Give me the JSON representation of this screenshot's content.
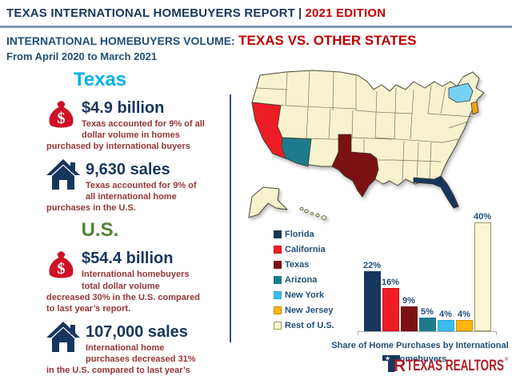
{
  "header": {
    "title": "TEXAS INTERNATIONAL HOMEBUYERS REPORT",
    "separator": "|",
    "edition": "2021 EDITION"
  },
  "subtitle": {
    "prefix": "INTERNATIONAL HOMEBUYERS VOLUME:",
    "highlight": "TEXAS VS. OTHER STATES",
    "date_range": "From April 2020 to March 2021"
  },
  "stats": {
    "texas": {
      "heading": "Texas",
      "items": [
        {
          "icon": "money-bag-icon",
          "headline": "$4.9 billion",
          "description": "Texas accounted for 9% of all dollar volume in homes purchased by international buyers"
        },
        {
          "icon": "house-icon",
          "headline": "9,630 sales",
          "description": "Texas accounted for 9% of all international home purchases in the U.S."
        }
      ]
    },
    "us": {
      "heading": "U.S.",
      "items": [
        {
          "icon": "money-bag-icon",
          "headline": "$54.4 billion",
          "description": "International homebuyers total dollar volume decreased 30% in the U.S. compared to last year’s report."
        },
        {
          "icon": "house-icon",
          "headline": "107,000 sales",
          "description": "International home purchases decreased 31% in the U.S. compared to last year’s report."
        }
      ]
    }
  },
  "chart_data": {
    "type": "bar",
    "categories": [
      "Florida",
      "California",
      "Texas",
      "Arizona",
      "New York",
      "New Jersey",
      "Rest of U.S."
    ],
    "values": [
      22,
      16,
      9,
      5,
      4,
      4,
      40
    ],
    "labels": [
      "22%",
      "16%",
      "9%",
      "5%",
      "4%",
      "4%",
      "40%"
    ],
    "colors": [
      "#17365D",
      "#EE1C25",
      "#7B1113",
      "#1E7B8C",
      "#3BBDEE",
      "#FFB612",
      "#FAF6D4"
    ],
    "border_colors": [
      "#17365D",
      "#D01018",
      "#7B1113",
      "#1E7B8C",
      "#2BA8DC",
      "#C98C00",
      "#9A9A60"
    ],
    "title": "Share of Home Purchases by International Homebuyers",
    "xlabel": "",
    "ylabel": "",
    "ylim": [
      0,
      42
    ],
    "grid": false,
    "legend_position": "left of chart, vertical",
    "value_labels": "above bars"
  },
  "map": {
    "description": "US states map, non-highlighted states cream",
    "default_fill": "#F7F2CE",
    "states": [
      {
        "id": "california",
        "color": "#EE1C25"
      },
      {
        "id": "arizona",
        "color": "#1E7B8C"
      },
      {
        "id": "texas",
        "color": "#7B1113"
      },
      {
        "id": "florida",
        "color": "#17365D"
      },
      {
        "id": "new-york",
        "color": "#76D2F5"
      },
      {
        "id": "new-jersey",
        "color": "#EFA21C"
      }
    ]
  },
  "icons": {
    "money_bag_symbol": "$",
    "money_bag_color": "#CE1126",
    "house_color": "#17365D"
  },
  "logo": {
    "brand": "TEXAS REALTORS",
    "reg": "®",
    "crimson": "#B01E28",
    "blue": "#17365D"
  }
}
